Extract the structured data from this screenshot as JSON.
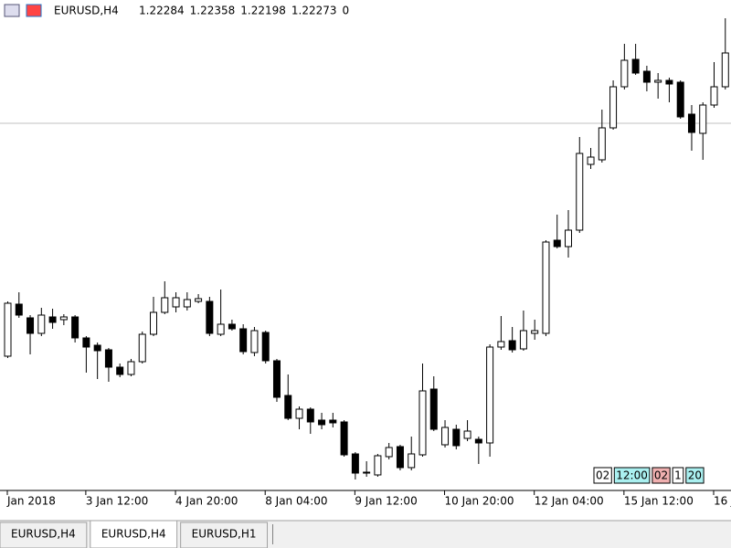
{
  "header": {
    "symbol": "EURUSD,H4",
    "prices": [
      1.22284,
      1.22358,
      1.22198,
      1.22273,
      0
    ]
  },
  "chart_data": {
    "type": "candlestick",
    "categories": [
      "Jan 2018",
      null,
      null,
      null,
      null,
      null,
      null,
      "3 Jan 12:00",
      null,
      null,
      null,
      null,
      null,
      null,
      null,
      "4 Jan 20:00",
      null,
      null,
      null,
      null,
      null,
      null,
      null,
      "8 Jan 04:00",
      null,
      null,
      null,
      null,
      null,
      null,
      null,
      "9 Jan 12:00",
      null,
      null,
      null,
      null,
      null,
      null,
      null,
      "10 Jan 20:00",
      null,
      null,
      null,
      null,
      null,
      null,
      null,
      "12 Jan 04:00",
      null,
      null,
      null,
      null,
      null,
      null,
      null,
      "15 Jan 12:00",
      null,
      null,
      null,
      null,
      null,
      null,
      null,
      "16 J",
      null
    ],
    "open": [
      1.2047,
      1.20869,
      1.20764,
      1.20645,
      1.20771,
      1.2075,
      1.20771,
      1.2061,
      1.20554,
      1.20519,
      1.20386,
      1.2033,
      1.20428,
      1.20638,
      1.20806,
      1.20848,
      1.20848,
      1.2089,
      1.2089,
      1.20638,
      1.20715,
      1.2068,
      1.20498,
      1.20652,
      1.20435,
      1.20169,
      1.19994,
      1.20064,
      1.1998,
      1.1998,
      1.19966,
      1.19721,
      1.19581,
      1.1956,
      1.197,
      1.19777,
      1.19616,
      1.19714,
      1.20218,
      1.19791,
      1.1991,
      1.1984,
      1.19833,
      1.19805,
      1.2054,
      1.20589,
      1.20526,
      1.20645,
      1.20645,
      1.21359,
      1.2131,
      1.21436,
      1.2194,
      1.21975,
      1.2222,
      1.22535,
      1.22745,
      1.22654,
      1.2257,
      1.22584,
      1.2257,
      1.22325,
      1.22178,
      1.22395,
      1.22535
    ],
    "high": [
      1.2089,
      1.2096,
      1.20785,
      1.20841,
      1.20834,
      1.20792,
      1.20785,
      1.20624,
      1.20575,
      1.20533,
      1.20414,
      1.20449,
      1.20659,
      1.20925,
      1.21044,
      1.2096,
      1.2096,
      1.20946,
      1.20925,
      1.20981,
      1.2075,
      1.20715,
      1.20694,
      1.20666,
      1.20449,
      1.2033,
      1.20085,
      1.20078,
      1.20036,
      1.20036,
      1.1998,
      1.19735,
      1.19665,
      1.19721,
      1.19805,
      1.19791,
      1.19854,
      1.20414,
      1.20316,
      1.1998,
      1.19945,
      1.1998,
      1.19854,
      1.20561,
      1.20778,
      1.20694,
      1.2082,
      1.2075,
      1.21359,
      1.21555,
      1.2159,
      1.2215,
      1.22066,
      1.2236,
      1.22584,
      1.22864,
      1.22864,
      1.22696,
      1.2264,
      1.22605,
      1.22584,
      1.22395,
      1.22416,
      1.22724,
      1.2306
    ],
    "low": [
      1.20456,
      1.20764,
      1.20484,
      1.20624,
      1.2068,
      1.20708,
      1.20575,
      1.20344,
      1.20295,
      1.20274,
      1.20309,
      1.20316,
      1.20414,
      1.20624,
      1.20792,
      1.20806,
      1.2082,
      1.20876,
      1.20624,
      1.20624,
      1.20666,
      1.20484,
      1.2047,
      1.20414,
      1.2012,
      1.1998,
      1.1991,
      1.19875,
      1.1991,
      1.19924,
      1.197,
      1.19525,
      1.19546,
      1.19546,
      1.19679,
      1.19595,
      1.19595,
      1.197,
      1.19896,
      1.1977,
      1.19756,
      1.19819,
      1.19644,
      1.197,
      1.20519,
      1.20498,
      1.20512,
      1.20596,
      1.20624,
      1.21296,
      1.21226,
      1.21415,
      1.21905,
      1.21954,
      1.22206,
      1.22514,
      1.22626,
      1.225,
      1.22444,
      1.22416,
      1.2229,
      1.22045,
      1.21975,
      1.22374,
      1.22514
    ],
    "close": [
      1.20876,
      1.20785,
      1.20645,
      1.20785,
      1.20729,
      1.20771,
      1.2061,
      1.2054,
      1.20512,
      1.20386,
      1.2033,
      1.20428,
      1.20638,
      1.20806,
      1.20918,
      1.20918,
      1.20904,
      1.20911,
      1.20645,
      1.20715,
      1.2068,
      1.20505,
      1.20666,
      1.20435,
      1.20155,
      1.19994,
      1.20064,
      1.19966,
      1.19945,
      1.19959,
      1.19714,
      1.19574,
      1.19574,
      1.19707,
      1.1977,
      1.19616,
      1.19721,
      1.20204,
      1.1991,
      1.19924,
      1.19784,
      1.19896,
      1.19805,
      1.2054,
      1.20582,
      1.20519,
      1.20666,
      1.20666,
      1.21345,
      1.2131,
      1.21436,
      1.22024,
      1.21996,
      1.2222,
      1.22535,
      1.22738,
      1.2264,
      1.2257,
      1.22584,
      1.22556,
      1.22304,
      1.22185,
      1.22395,
      1.22535,
      1.22794
    ],
    "ylim": [
      1.1945,
      1.232
    ],
    "hline": 1.22255,
    "hline_color": "#c0c0c0",
    "bull_color": "#ffffff",
    "bear_color": "#000000",
    "line_color": "#000000",
    "separators": [
      {
        "text": "02",
        "color": "#ffffff"
      },
      {
        "text": "12:00",
        "color": "#aaf0f0"
      },
      {
        "text": "02",
        "color": "#f0b0b0"
      },
      {
        "text": "1",
        "color": "#ffffff"
      },
      {
        "text": "20",
        "color": "#aaf0f0"
      }
    ]
  },
  "tabs": [
    "EURUSD,H4",
    "EURUSD,H4",
    "EURUSD,H1"
  ],
  "active_tab": 1
}
